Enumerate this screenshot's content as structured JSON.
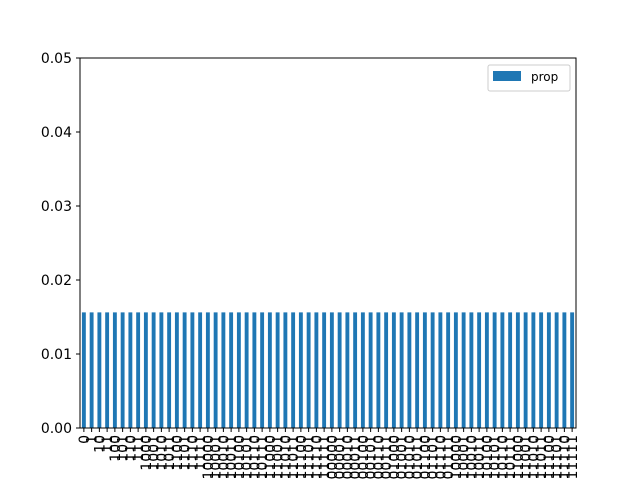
{
  "chart_data": {
    "type": "bar",
    "categories": [
      "0",
      "1",
      "10",
      "11",
      "100",
      "101",
      "110",
      "111",
      "1000",
      "1001",
      "1010",
      "1011",
      "1100",
      "1101",
      "1110",
      "1111",
      "10000",
      "10001",
      "10010",
      "10011",
      "10100",
      "10101",
      "10110",
      "10111",
      "11000",
      "11001",
      "11010",
      "11011",
      "11100",
      "11101",
      "11110",
      "11111",
      "100000",
      "100001",
      "100010",
      "100011",
      "100100",
      "100101",
      "100110",
      "100111",
      "101000",
      "101001",
      "101010",
      "101011",
      "101100",
      "101101",
      "101110",
      "101111",
      "110000",
      "110001",
      "110010",
      "110011",
      "110100",
      "110101",
      "110110",
      "110111",
      "111000",
      "111001",
      "111010",
      "111011",
      "111100",
      "111101",
      "111110",
      "111111"
    ],
    "series": [
      {
        "name": "prop",
        "value_each": 0.015625
      }
    ],
    "ylim": [
      0,
      0.05
    ],
    "yticks": [
      "0.00",
      "0.01",
      "0.02",
      "0.03",
      "0.04",
      "0.05"
    ],
    "legend_position": "top-right",
    "grid": false,
    "colors": {
      "bar": "#1f77b4",
      "axis": "#000000"
    }
  }
}
